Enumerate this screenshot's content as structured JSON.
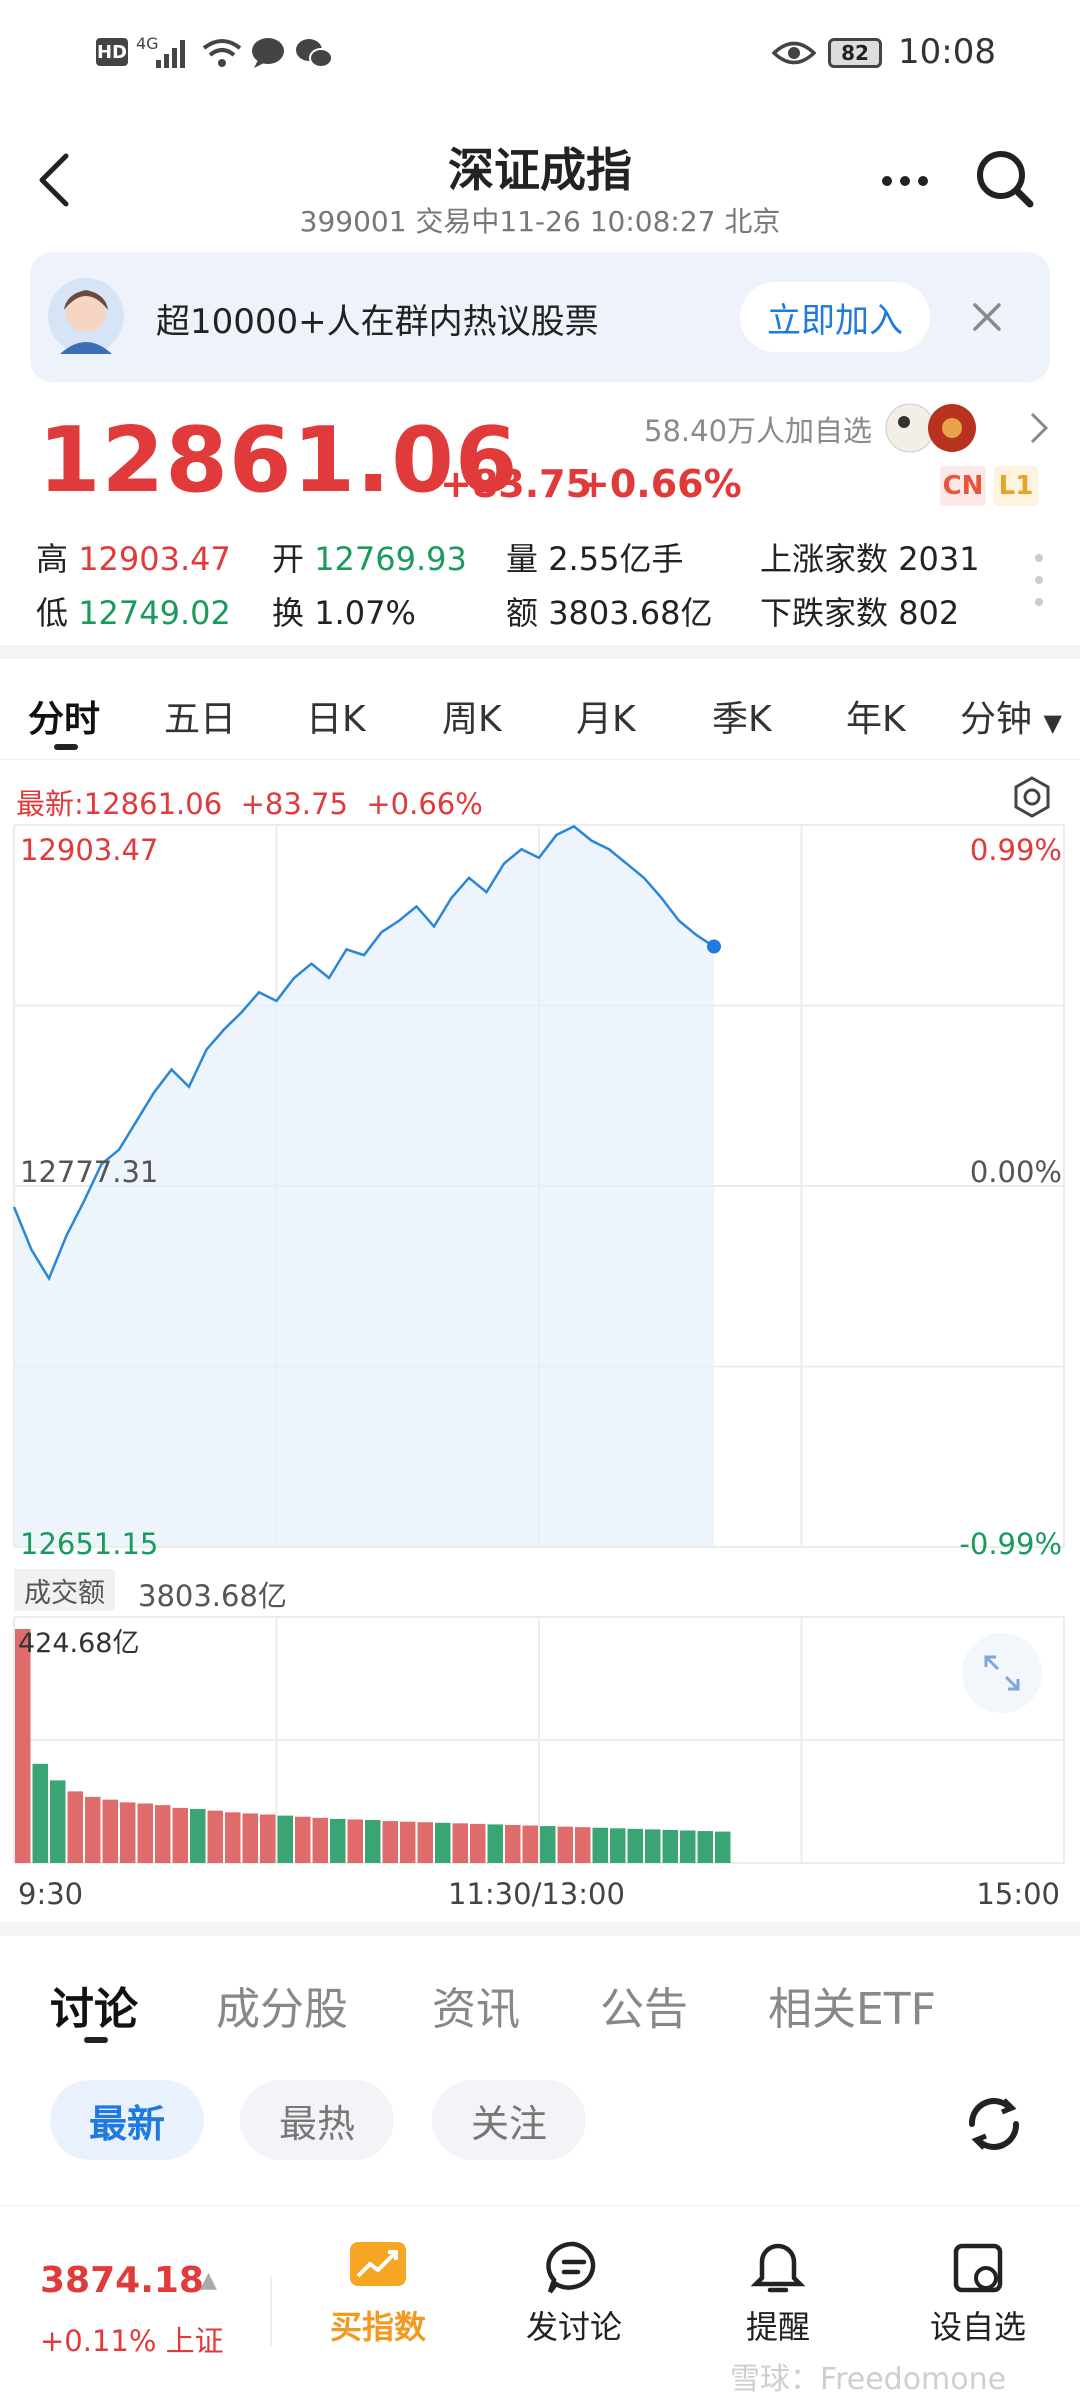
{
  "status_bar": {
    "hd": "HD",
    "network": "4G",
    "battery": "82",
    "time": "10:08"
  },
  "header": {
    "title": "深证成指",
    "subtitle": "399001 交易中11-26 10:08:27 北京"
  },
  "banner": {
    "text": "超10000+人在群内热议股票",
    "join_label": "立即加入"
  },
  "quote": {
    "price": "12861.06",
    "change": "+83.75",
    "change_pct": "+0.66%",
    "followers": "58.40万人加自选",
    "badge_cn": "CN",
    "badge_l1": "L1",
    "stats": [
      {
        "label": "高",
        "value": "12903.47",
        "color": "red"
      },
      {
        "label": "开",
        "value": "12769.93",
        "color": "green"
      },
      {
        "label": "量",
        "value": "2.55亿手",
        "color": "plain"
      },
      {
        "label": "上涨家数",
        "value": "2031",
        "color": "plain"
      },
      {
        "label": "低",
        "value": "12749.02",
        "color": "green"
      },
      {
        "label": "换",
        "value": "1.07%",
        "color": "plain"
      },
      {
        "label": "额",
        "value": "3803.68亿",
        "color": "plain"
      },
      {
        "label": "下跌家数",
        "value": "802",
        "color": "plain"
      }
    ]
  },
  "chart_tabs": [
    "分时",
    "五日",
    "日K",
    "周K",
    "月K",
    "季K",
    "年K",
    "分钟"
  ],
  "chart_data": {
    "type": "line",
    "latest_label": "最新:12861.06",
    "latest_change": "+83.75",
    "latest_pct": "+0.66%",
    "y_labels": {
      "top": "12903.47",
      "mid": "12777.31",
      "bottom": "12651.15"
    },
    "pct_labels": {
      "top": "0.99%",
      "mid": "0.00%",
      "bottom": "-0.99%"
    },
    "ylim": [
      12651.15,
      12903.47
    ],
    "total_minutes": 240,
    "price_series": [
      12770,
      12755,
      12745,
      12760,
      12772,
      12785,
      12790,
      12800,
      12810,
      12818,
      12812,
      12825,
      12832,
      12838,
      12845,
      12842,
      12850,
      12855,
      12850,
      12860,
      12858,
      12866,
      12870,
      12875,
      12868,
      12878,
      12885,
      12880,
      12890,
      12895,
      12892,
      12900,
      12903,
      12898,
      12895,
      12890,
      12885,
      12878,
      12870,
      12865,
      12861
    ],
    "volume_label": "成交额",
    "volume_total": "3803.68亿",
    "volume_max_label": "424.68亿",
    "volume_max": 424.68,
    "volume_series": [
      424.68,
      180,
      150,
      130,
      120,
      115,
      110,
      108,
      105,
      100,
      98,
      95,
      92,
      90,
      88,
      86,
      84,
      82,
      80,
      79,
      78,
      76,
      75,
      74,
      73,
      72,
      71,
      70,
      69,
      68,
      67,
      66,
      65,
      64,
      63,
      62,
      61,
      60,
      59,
      58,
      57
    ],
    "x_labels": [
      "9:30",
      "11:30/13:00",
      "15:00"
    ]
  },
  "content_tabs": [
    "讨论",
    "成分股",
    "资讯",
    "公告",
    "相关ETF"
  ],
  "filters": [
    "最新",
    "最热",
    "关注"
  ],
  "bottom_nav": {
    "index_value": "3874.18",
    "index_change": "+0.11% 上证",
    "items": [
      "买指数",
      "发讨论",
      "提醒",
      "设自选"
    ]
  },
  "watermark": "雪球：Freedomone",
  "colors": {
    "red": "#e03a3a",
    "green": "#1a9b5c",
    "blue": "#1f7ae0",
    "orange": "#f19a1f"
  }
}
